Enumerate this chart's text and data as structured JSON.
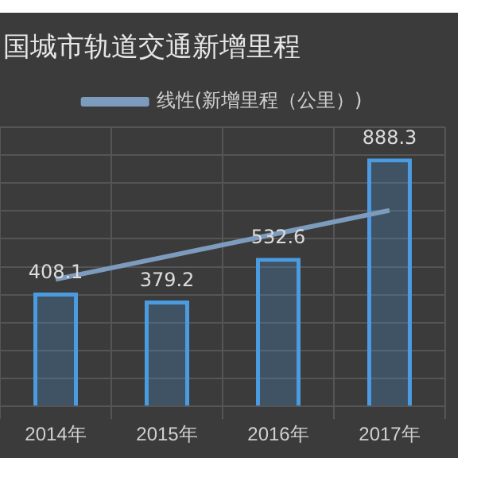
{
  "chart_data": {
    "type": "bar",
    "title": "国城市轨道交通新增里程",
    "categories": [
      "2014年",
      "2015年",
      "2016年",
      "2017年"
    ],
    "series": [
      {
        "color": "#4a9be0",
        "values": [
          408.1,
          379.2,
          532.6,
          888.3
        ],
        "value_labels": [
          "408.1",
          "379.2",
          "532.6",
          "888.3"
        ]
      },
      {
        "type": "line",
        "name": "线性(新增里程（公里）)",
        "color": "#7d9bbd",
        "values": [
          455,
          537,
          620,
          702
        ]
      }
    ],
    "ylim": [
      0,
      1000
    ],
    "yticks": [
      {
        "value": 0,
        "label": null
      },
      {
        "value": 100,
        "label": null
      },
      {
        "value": 200,
        "label": null
      },
      {
        "value": 300,
        "label": null
      },
      {
        "value": 400,
        "label": null
      },
      {
        "value": 500,
        "label": null
      },
      {
        "value": 600,
        "label": null
      },
      {
        "value": 700,
        "label": null
      },
      {
        "value": 800,
        "label": null
      },
      {
        "value": 900,
        "label": null
      },
      {
        "value": 1000,
        "label": null
      }
    ],
    "tick_labels": "x",
    "grid": true,
    "legend": "top",
    "marker": "none"
  }
}
